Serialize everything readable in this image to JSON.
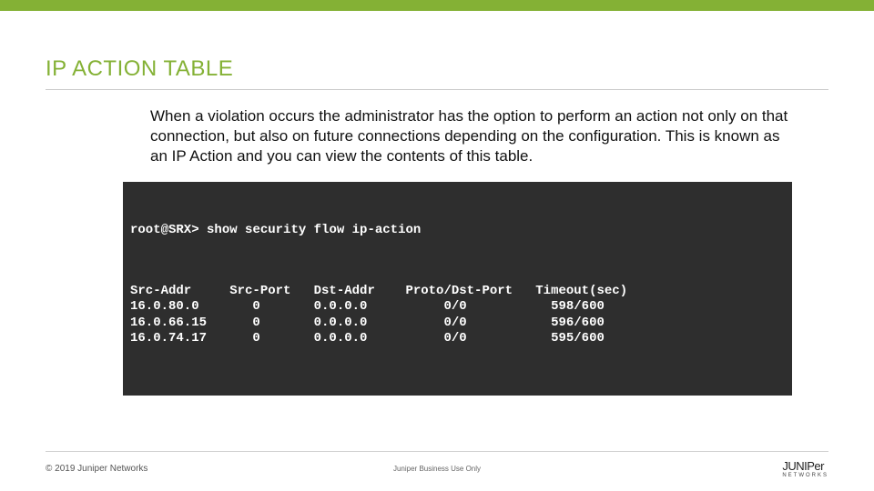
{
  "colors": {
    "accent": "#84b135",
    "terminal_bg": "#2e2e2e",
    "terminal_fg": "#ffffff",
    "text": "#111111",
    "divider": "#cccccc"
  },
  "title": "IP ACTION TABLE",
  "body": "When a violation occurs the administrator has the option to perform an action not only on that connection, but also on future connections depending on the configuration. This is known as an IP Action and you can view the contents of this table.",
  "terminal": {
    "prompt": "root@SRX>",
    "command": "show security flow ip-action",
    "columns": [
      "Src-Addr",
      "Src-Port",
      "Dst-Addr",
      "Proto/Dst-Port",
      "Timeout(sec)"
    ],
    "rows": [
      {
        "src_addr": "16.0.80.0",
        "src_port": "0",
        "dst_addr": "0.0.0.0",
        "proto_dst_port": "0/0",
        "timeout": "598/600"
      },
      {
        "src_addr": "16.0.66.15",
        "src_port": "0",
        "dst_addr": "0.0.0.0",
        "proto_dst_port": "0/0",
        "timeout": "596/600"
      },
      {
        "src_addr": "16.0.74.17",
        "src_port": "0",
        "dst_addr": "0.0.0.0",
        "proto_dst_port": "0/0",
        "timeout": "595/600"
      }
    ]
  },
  "footer": {
    "copyright": "© 2019 Juniper Networks",
    "center": "Juniper Business Use Only",
    "logo_main": "JUNIPer",
    "logo_sub": "NETWORKS"
  }
}
